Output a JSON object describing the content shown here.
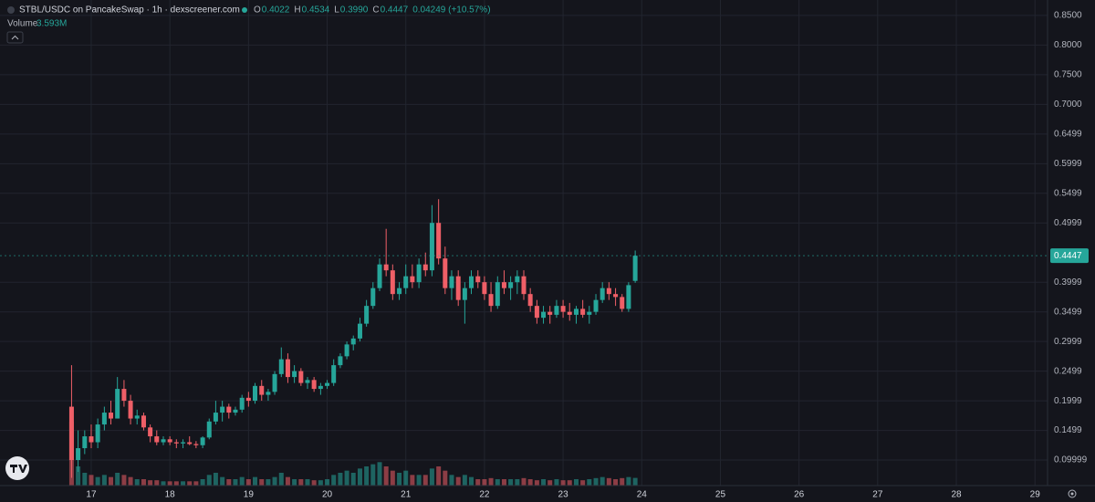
{
  "header": {
    "title": "STBL/USDC on PancakeSwap · 1h · dexscreener.com",
    "ohlc": [
      {
        "key": "O",
        "value": "0.4022"
      },
      {
        "key": "H",
        "value": "0.4534"
      },
      {
        "key": "L",
        "value": "0.3990"
      },
      {
        "key": "C",
        "value": "0.4447"
      }
    ],
    "change": "0.04249 (+10.57%)",
    "volume_label": "Volume",
    "volume_value": "3.593M"
  },
  "chart_data": {
    "type": "candlestick",
    "up_color": "#26a69a",
    "down_color": "#ef5f67",
    "grid": true,
    "x": [
      16.75,
      16.833,
      16.917,
      17,
      17.083,
      17.167,
      17.25,
      17.333,
      17.417,
      17.5,
      17.583,
      17.667,
      17.75,
      17.833,
      17.917,
      18,
      18.083,
      18.167,
      18.25,
      18.333,
      18.417,
      18.5,
      18.583,
      18.667,
      18.75,
      18.833,
      18.917,
      19,
      19.083,
      19.167,
      19.25,
      19.333,
      19.417,
      19.5,
      19.583,
      19.667,
      19.75,
      19.833,
      19.917,
      20,
      20.083,
      20.167,
      20.25,
      20.333,
      20.417,
      20.5,
      20.583,
      20.667,
      20.75,
      20.833,
      20.917,
      21,
      21.083,
      21.167,
      21.25,
      21.333,
      21.417,
      21.5,
      21.583,
      21.667,
      21.75,
      21.833,
      21.917,
      22,
      22.083,
      22.167,
      22.25,
      22.333,
      22.417,
      22.5,
      22.583,
      22.667,
      22.75,
      22.833,
      22.917,
      23,
      23.083,
      23.167,
      23.25,
      23.333,
      23.417,
      23.5,
      23.583,
      23.667,
      23.75,
      23.833,
      23.917
    ],
    "open": [
      0.19,
      0.1,
      0.12,
      0.14,
      0.13,
      0.16,
      0.18,
      0.17,
      0.22,
      0.2,
      0.17,
      0.175,
      0.155,
      0.14,
      0.13,
      0.135,
      0.13,
      0.128,
      0.13,
      0.127,
      0.125,
      0.138,
      0.165,
      0.18,
      0.19,
      0.18,
      0.185,
      0.205,
      0.2,
      0.225,
      0.21,
      0.215,
      0.245,
      0.27,
      0.24,
      0.25,
      0.23,
      0.235,
      0.22,
      0.225,
      0.23,
      0.26,
      0.275,
      0.295,
      0.305,
      0.33,
      0.36,
      0.39,
      0.43,
      0.42,
      0.38,
      0.39,
      0.41,
      0.4,
      0.43,
      0.42,
      0.5,
      0.44,
      0.39,
      0.41,
      0.37,
      0.39,
      0.41,
      0.4,
      0.38,
      0.36,
      0.4,
      0.39,
      0.4,
      0.41,
      0.38,
      0.36,
      0.34,
      0.35,
      0.345,
      0.36,
      0.35,
      0.345,
      0.355,
      0.345,
      0.35,
      0.37,
      0.39,
      0.38,
      0.375,
      0.355,
      0.4022
    ],
    "high": [
      0.26,
      0.15,
      0.15,
      0.16,
      0.17,
      0.19,
      0.2,
      0.24,
      0.235,
      0.21,
      0.185,
      0.18,
      0.16,
      0.15,
      0.14,
      0.14,
      0.135,
      0.135,
      0.14,
      0.132,
      0.14,
      0.17,
      0.2,
      0.2,
      0.195,
      0.19,
      0.21,
      0.215,
      0.23,
      0.235,
      0.22,
      0.25,
      0.29,
      0.28,
      0.26,
      0.255,
      0.24,
      0.24,
      0.23,
      0.235,
      0.27,
      0.28,
      0.3,
      0.31,
      0.34,
      0.37,
      0.4,
      0.44,
      0.49,
      0.43,
      0.4,
      0.43,
      0.43,
      0.44,
      0.45,
      0.53,
      0.54,
      0.46,
      0.42,
      0.42,
      0.4,
      0.42,
      0.42,
      0.41,
      0.4,
      0.41,
      0.42,
      0.41,
      0.42,
      0.42,
      0.39,
      0.37,
      0.36,
      0.36,
      0.37,
      0.37,
      0.365,
      0.36,
      0.37,
      0.36,
      0.38,
      0.4,
      0.4,
      0.39,
      0.38,
      0.4,
      0.4534
    ],
    "low": [
      0.07,
      0.08,
      0.11,
      0.12,
      0.12,
      0.15,
      0.16,
      0.17,
      0.19,
      0.16,
      0.16,
      0.15,
      0.13,
      0.125,
      0.125,
      0.125,
      0.12,
      0.12,
      0.125,
      0.12,
      0.12,
      0.135,
      0.16,
      0.165,
      0.17,
      0.175,
      0.18,
      0.19,
      0.195,
      0.2,
      0.2,
      0.21,
      0.24,
      0.23,
      0.23,
      0.225,
      0.22,
      0.215,
      0.21,
      0.22,
      0.225,
      0.255,
      0.27,
      0.285,
      0.3,
      0.325,
      0.355,
      0.385,
      0.41,
      0.37,
      0.37,
      0.38,
      0.39,
      0.39,
      0.41,
      0.41,
      0.43,
      0.38,
      0.37,
      0.36,
      0.33,
      0.38,
      0.39,
      0.37,
      0.35,
      0.355,
      0.38,
      0.37,
      0.38,
      0.37,
      0.35,
      0.33,
      0.33,
      0.33,
      0.34,
      0.34,
      0.335,
      0.33,
      0.34,
      0.33,
      0.345,
      0.365,
      0.37,
      0.36,
      0.35,
      0.35,
      0.399
    ],
    "close": [
      0.1,
      0.12,
      0.14,
      0.13,
      0.16,
      0.18,
      0.17,
      0.22,
      0.2,
      0.17,
      0.175,
      0.155,
      0.14,
      0.13,
      0.135,
      0.13,
      0.128,
      0.13,
      0.127,
      0.125,
      0.138,
      0.165,
      0.18,
      0.19,
      0.18,
      0.185,
      0.205,
      0.2,
      0.225,
      0.21,
      0.215,
      0.245,
      0.27,
      0.24,
      0.25,
      0.23,
      0.235,
      0.22,
      0.225,
      0.23,
      0.26,
      0.275,
      0.295,
      0.305,
      0.33,
      0.36,
      0.39,
      0.43,
      0.42,
      0.38,
      0.39,
      0.41,
      0.4,
      0.43,
      0.42,
      0.5,
      0.44,
      0.39,
      0.41,
      0.37,
      0.39,
      0.41,
      0.4,
      0.38,
      0.36,
      0.4,
      0.39,
      0.4,
      0.41,
      0.38,
      0.36,
      0.34,
      0.35,
      0.345,
      0.36,
      0.35,
      0.345,
      0.355,
      0.345,
      0.35,
      0.37,
      0.39,
      0.38,
      0.375,
      0.355,
      0.395,
      0.4447
    ],
    "volume": [
      30000000,
      9000000,
      6000000,
      5000000,
      4000000,
      5000000,
      4000000,
      6000000,
      5000000,
      4000000,
      3000000,
      3000000,
      2500000,
      2500000,
      2000000,
      2000000,
      2000000,
      2000000,
      2000000,
      2000000,
      3000000,
      5000000,
      6000000,
      4000000,
      3000000,
      3000000,
      4000000,
      3000000,
      4000000,
      3000000,
      3000000,
      4000000,
      6000000,
      4000000,
      3000000,
      3000000,
      3000000,
      2500000,
      2500000,
      3000000,
      5000000,
      6000000,
      7000000,
      6000000,
      8000000,
      9000000,
      10000000,
      11000000,
      9000000,
      7000000,
      6000000,
      7000000,
      5000000,
      5000000,
      5000000,
      8000000,
      9000000,
      7000000,
      5000000,
      4000000,
      5000000,
      4000000,
      3000000,
      3000000,
      3500000,
      3000000,
      3000000,
      3000000,
      3000000,
      3500000,
      3000000,
      2500000,
      3000000,
      2500000,
      3000000,
      2500000,
      2500000,
      3000000,
      2500000,
      3000000,
      3500000,
      4000000,
      3500000,
      3000000,
      3500000,
      4000000,
      3593000
    ],
    "xlim": [
      15.84,
      29.16
    ],
    "xticks": [
      17,
      18,
      19,
      20,
      21,
      22,
      23,
      24,
      25,
      26,
      27,
      28,
      29
    ],
    "ylim": [
      0.06,
      0.876
    ],
    "yticks": [
      {
        "value": 0.85,
        "label": "0.8500"
      },
      {
        "value": 0.8,
        "label": "0.8000"
      },
      {
        "value": 0.75,
        "label": "0.7500"
      },
      {
        "value": 0.7,
        "label": "0.7000"
      },
      0.6499,
      0.5999,
      0.5499,
      0.4999,
      0.3999,
      0.3499,
      0.2999,
      0.2499,
      0.1999,
      0.1499,
      0.09999
    ]
  }
}
